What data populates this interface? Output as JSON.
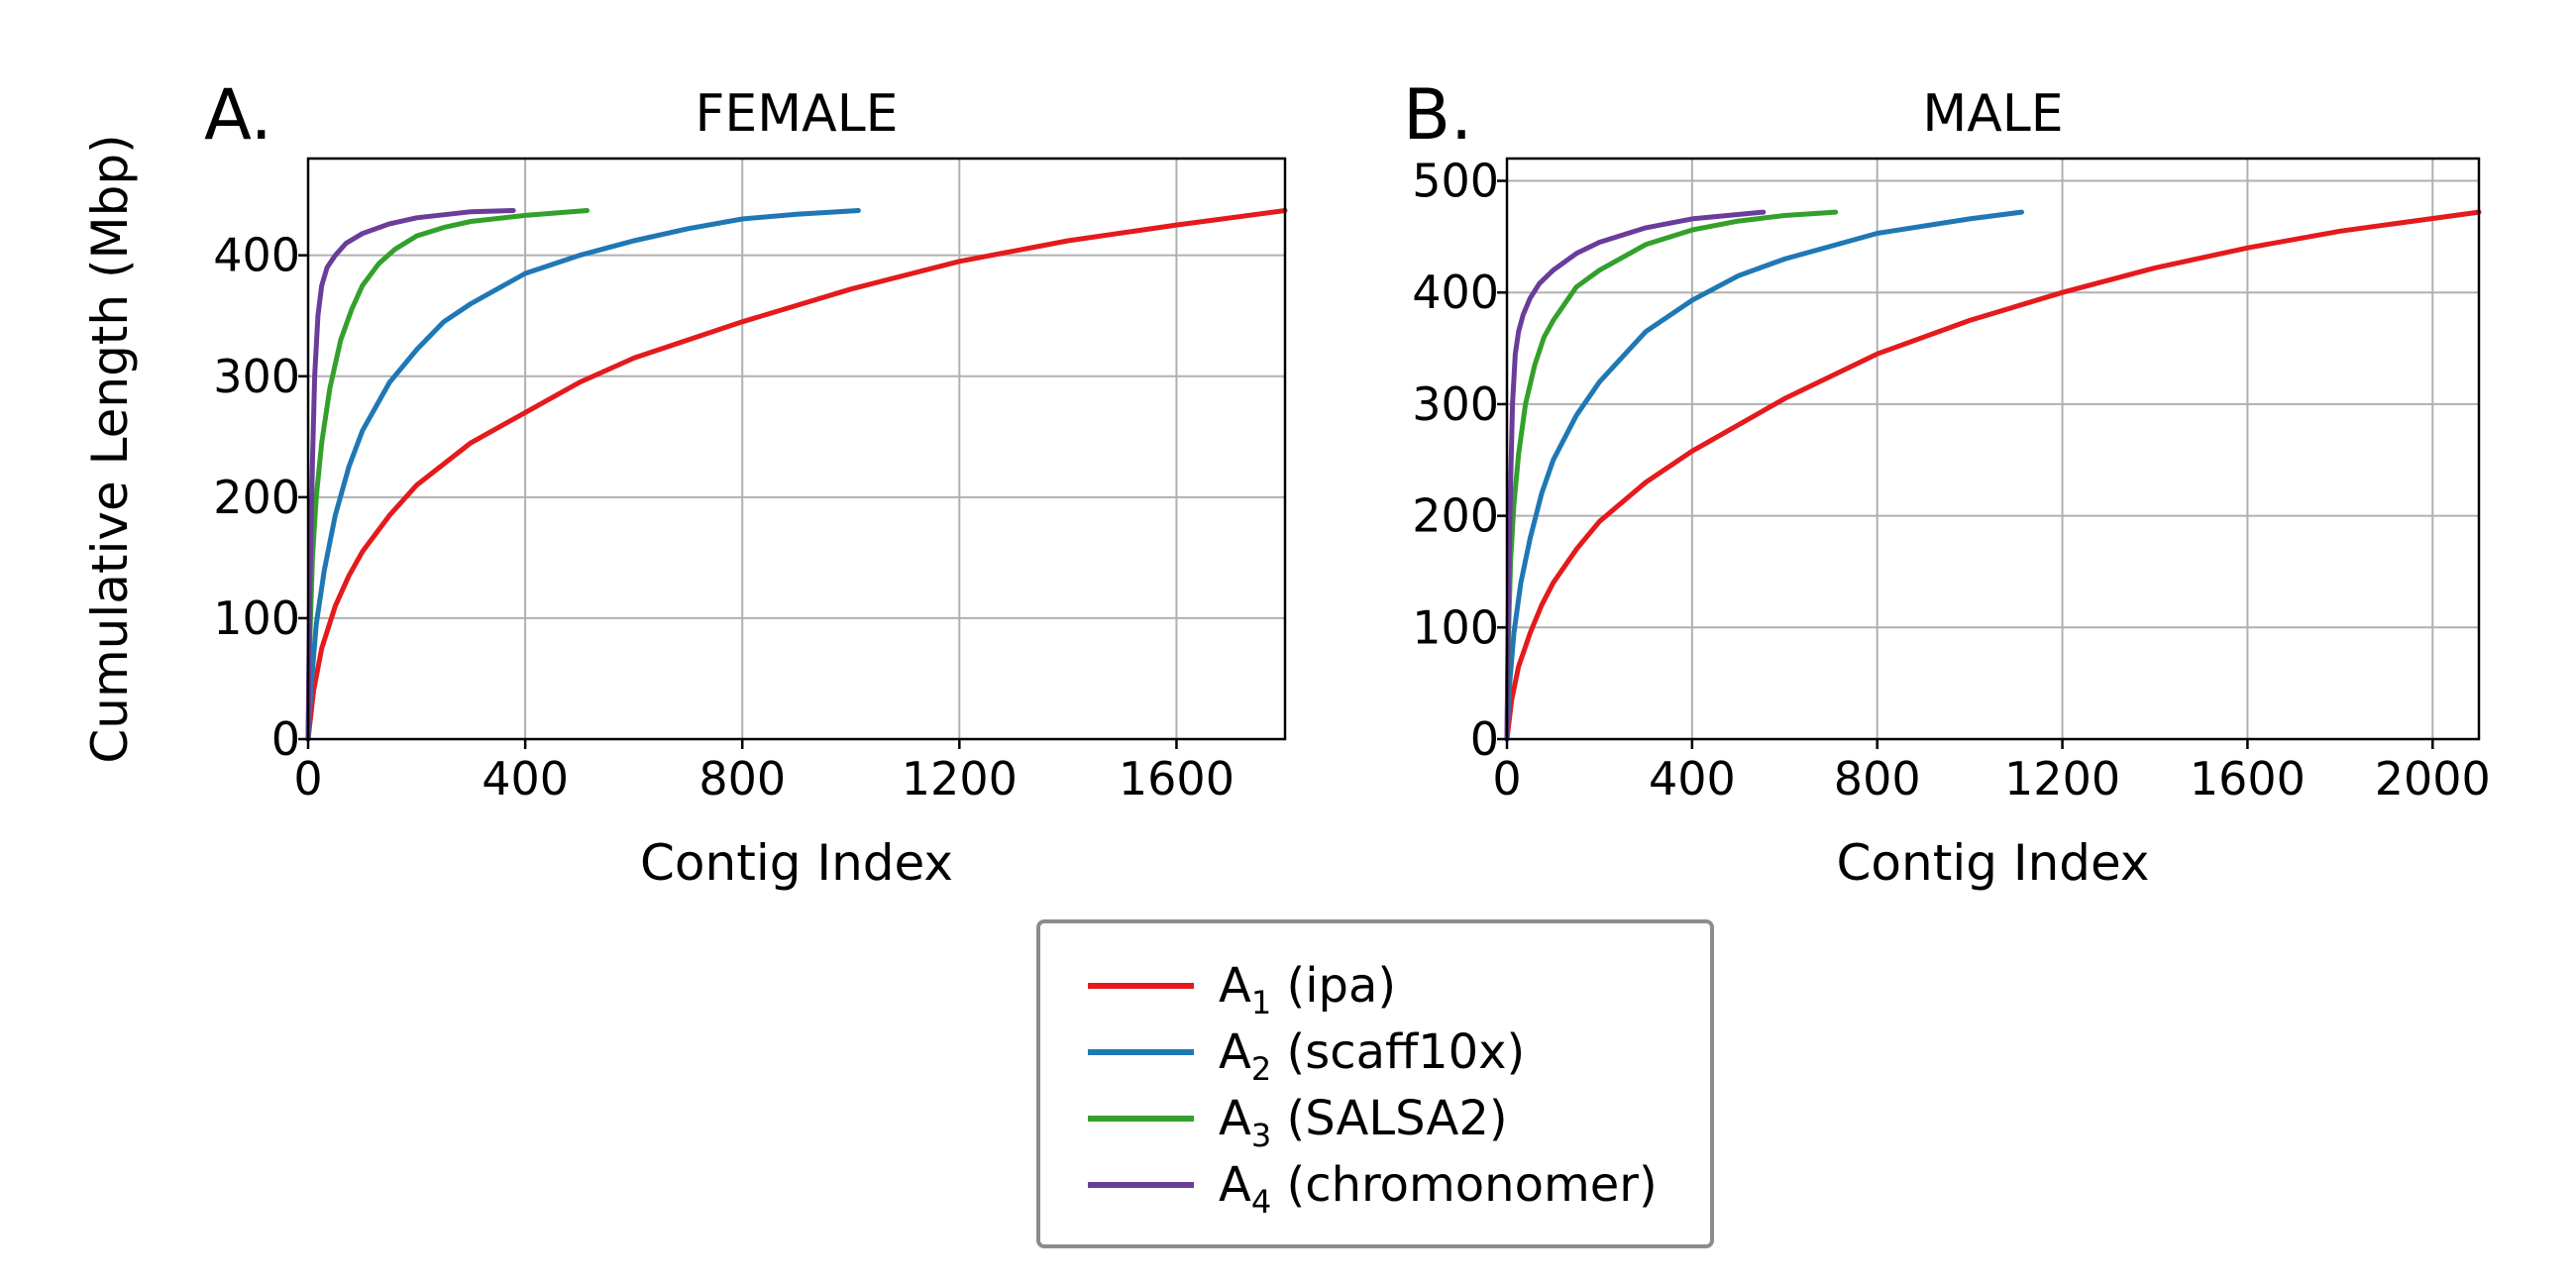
{
  "chart_data": [
    {
      "type": "line",
      "panel": "A.",
      "title": "FEMALE",
      "xlabel": "Contig Index",
      "ylabel": "Cumulative Length (Mbp)",
      "xlim": [
        0,
        1800
      ],
      "ylim": [
        0,
        480
      ],
      "xticks": [
        0,
        400,
        800,
        1200,
        1600
      ],
      "yticks": [
        0,
        100,
        200,
        300,
        400
      ],
      "grid": true,
      "series": [
        {
          "key": "ipa",
          "color": "#e41a1c",
          "x": [
            0,
            10,
            25,
            50,
            75,
            100,
            150,
            200,
            300,
            400,
            500,
            600,
            800,
            1000,
            1200,
            1400,
            1600,
            1800
          ],
          "y": [
            0,
            40,
            75,
            110,
            135,
            155,
            185,
            210,
            245,
            270,
            295,
            315,
            345,
            372,
            395,
            412,
            425,
            437
          ]
        },
        {
          "key": "scaff10x",
          "color": "#1f78b4",
          "x": [
            0,
            5,
            15,
            30,
            50,
            75,
            100,
            150,
            200,
            250,
            300,
            400,
            500,
            600,
            700,
            800,
            900,
            1014
          ],
          "y": [
            0,
            40,
            95,
            140,
            185,
            225,
            255,
            295,
            322,
            345,
            360,
            385,
            400,
            412,
            422,
            430,
            434,
            437
          ]
        },
        {
          "key": "SALSA2",
          "color": "#33a02c",
          "x": [
            0,
            3,
            8,
            15,
            25,
            40,
            60,
            80,
            100,
            130,
            160,
            200,
            250,
            300,
            400,
            514
          ],
          "y": [
            0,
            80,
            150,
            200,
            245,
            290,
            330,
            355,
            375,
            393,
            405,
            416,
            423,
            428,
            433,
            437
          ]
        },
        {
          "key": "chromonomer",
          "color": "#6a3d9a",
          "x": [
            0,
            3,
            8,
            12,
            18,
            25,
            35,
            50,
            70,
            100,
            150,
            200,
            300,
            378
          ],
          "y": [
            0,
            120,
            230,
            300,
            350,
            375,
            390,
            400,
            410,
            418,
            426,
            431,
            436,
            437
          ]
        }
      ]
    },
    {
      "type": "line",
      "panel": "B.",
      "title": "MALE",
      "xlabel": "Contig Index",
      "ylabel": "",
      "xlim": [
        0,
        2100
      ],
      "ylim": [
        0,
        520
      ],
      "xticks": [
        0,
        400,
        800,
        1200,
        1600,
        2000
      ],
      "yticks": [
        0,
        100,
        200,
        300,
        400,
        500
      ],
      "grid": true,
      "series": [
        {
          "key": "ipa",
          "color": "#e41a1c",
          "x": [
            0,
            10,
            25,
            50,
            75,
            100,
            150,
            200,
            300,
            400,
            600,
            800,
            1000,
            1200,
            1400,
            1600,
            1800,
            2100
          ],
          "y": [
            0,
            35,
            65,
            95,
            120,
            140,
            170,
            195,
            230,
            258,
            305,
            345,
            375,
            400,
            422,
            440,
            455,
            472
          ]
        },
        {
          "key": "scaff10x",
          "color": "#1f78b4",
          "x": [
            0,
            5,
            15,
            30,
            50,
            75,
            100,
            150,
            200,
            300,
            400,
            500,
            600,
            800,
            1000,
            1112
          ],
          "y": [
            0,
            45,
            95,
            140,
            180,
            220,
            250,
            290,
            320,
            365,
            393,
            415,
            430,
            453,
            466,
            472
          ]
        },
        {
          "key": "SALSA2",
          "color": "#33a02c",
          "x": [
            0,
            3,
            8,
            15,
            25,
            40,
            60,
            80,
            100,
            150,
            200,
            300,
            400,
            500,
            600,
            710
          ],
          "y": [
            0,
            90,
            160,
            210,
            255,
            300,
            335,
            360,
            375,
            405,
            420,
            443,
            456,
            464,
            469,
            472
          ]
        },
        {
          "key": "chromonomer",
          "color": "#6a3d9a",
          "x": [
            0,
            3,
            8,
            12,
            18,
            25,
            35,
            50,
            70,
            100,
            150,
            200,
            300,
            400,
            554
          ],
          "y": [
            0,
            120,
            230,
            300,
            345,
            365,
            380,
            395,
            408,
            420,
            435,
            445,
            458,
            466,
            472
          ]
        }
      ]
    }
  ],
  "legend": {
    "placement": "bottom-center",
    "items": [
      {
        "key": "ipa",
        "base": "A",
        "sub": "1",
        "label": " (ipa)",
        "color": "#e41a1c"
      },
      {
        "key": "scaff10x",
        "base": "A",
        "sub": "2",
        "label": " (scaff10x)",
        "color": "#1f78b4"
      },
      {
        "key": "SALSA2",
        "base": "A",
        "sub": "3",
        "label": " (SALSA2)",
        "color": "#33a02c"
      },
      {
        "key": "chromonomer",
        "base": "A",
        "sub": "4",
        "label": " (chromonomer)",
        "color": "#6a3d9a"
      }
    ]
  }
}
